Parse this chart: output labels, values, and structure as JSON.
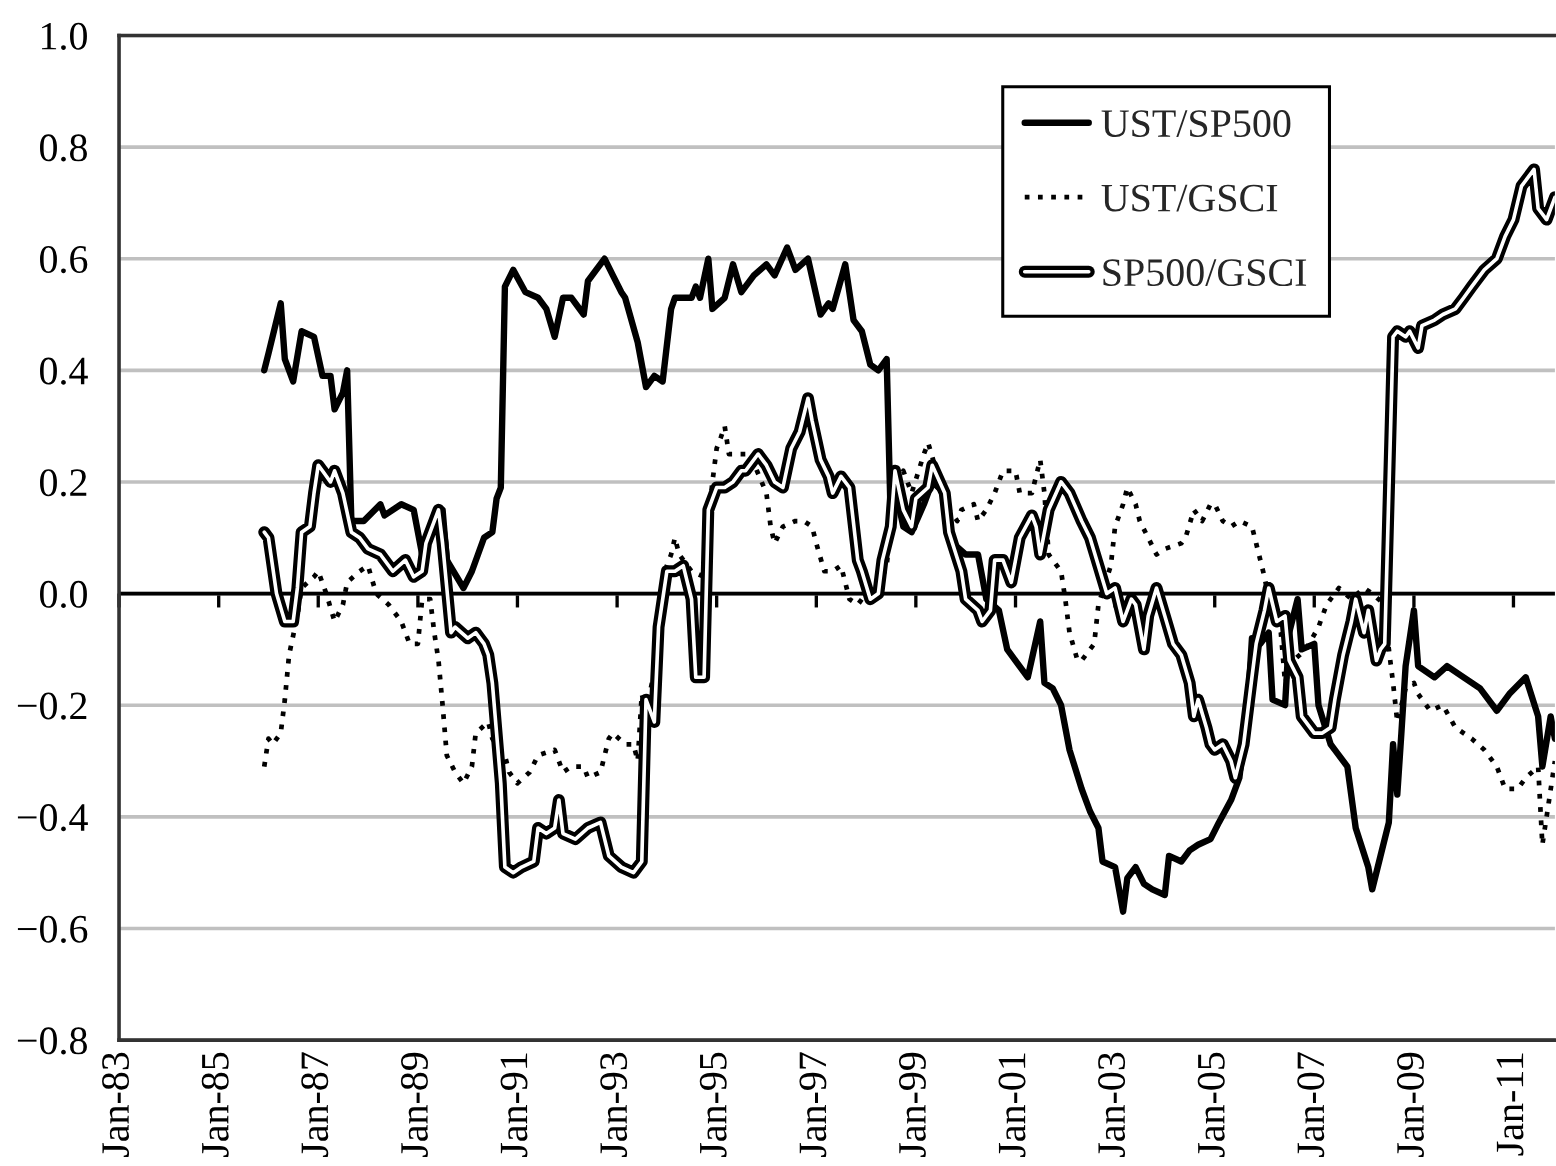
{
  "chart_data": {
    "type": "line",
    "xlim": [
      "1983-01",
      "2011-11"
    ],
    "xticks": [
      {
        "value": "1983-01",
        "label": "Jan-83"
      },
      {
        "value": "1985-01",
        "label": "Jan-85"
      },
      {
        "value": "1987-01",
        "label": "Jan-87"
      },
      {
        "value": "1989-01",
        "label": "Jan-89"
      },
      {
        "value": "1991-01",
        "label": "Jan-91"
      },
      {
        "value": "1993-01",
        "label": "Jan-93"
      },
      {
        "value": "1995-01",
        "label": "Jan-95"
      },
      {
        "value": "1997-01",
        "label": "Jan-97"
      },
      {
        "value": "1999-01",
        "label": "Jan-99"
      },
      {
        "value": "2001-01",
        "label": "Jan-01"
      },
      {
        "value": "2003-01",
        "label": "Jan-03"
      },
      {
        "value": "2005-01",
        "label": "Jan-05"
      },
      {
        "value": "2007-01",
        "label": "Jan-07"
      },
      {
        "value": "2009-01",
        "label": "Jan-09"
      },
      {
        "value": "2011-01",
        "label": "Jan-11"
      }
    ],
    "ylim": [
      -0.8,
      1.0
    ],
    "yticks": [
      {
        "value": -0.8,
        "label": "−0.8"
      },
      {
        "value": -0.6,
        "label": "−0.6"
      },
      {
        "value": -0.4,
        "label": "−0.4"
      },
      {
        "value": -0.2,
        "label": "−0.2"
      },
      {
        "value": 0,
        "label": "0.0"
      },
      0.2,
      0.4,
      0.6,
      0.8,
      {
        "value": 1,
        "label": "1.0"
      }
    ],
    "grid": "y",
    "legend": "top right",
    "ref_lines": [
      {
        "axis": "y",
        "value": 0,
        "color": "#000000"
      }
    ],
    "series": [
      {
        "name": "UST/SP500",
        "color": "#000000",
        "line_style": "solid",
        "x": [
          "1985-12",
          "1986-01",
          "1986-04",
          "1986-05",
          "1986-07",
          "1986-09",
          "1986-12",
          "1987-02",
          "1987-04",
          "1987-05",
          "1987-07",
          "1987-08",
          "1987-09",
          "1987-12",
          "1988-04",
          "1988-05",
          "1988-09",
          "1988-12",
          "1989-02",
          "1989-05",
          "1989-07",
          "1989-08",
          "1989-12",
          "1990-02",
          "1990-05",
          "1990-07",
          "1990-08",
          "1990-09",
          "1990-10",
          "1990-12",
          "1991-03",
          "1991-06",
          "1991-08",
          "1991-10",
          "1991-12",
          "1992-02",
          "1992-05",
          "1992-06",
          "1992-10",
          "1992-12",
          "1993-02",
          "1993-03",
          "1993-06",
          "1993-08",
          "1993-10",
          "1993-12",
          "1994-02",
          "1994-03",
          "1994-07",
          "1994-08",
          "1994-09",
          "1994-11",
          "1994-12",
          "1995-03",
          "1995-05",
          "1995-07",
          "1995-10",
          "1996-01",
          "1996-03",
          "1996-06",
          "1996-08",
          "1996-11",
          "1997-02",
          "1997-04",
          "1997-05",
          "1997-08",
          "1997-10",
          "1997-12",
          "1998-02",
          "1998-04",
          "1998-06",
          "1998-07",
          "1998-08",
          "1998-10",
          "1998-12",
          "1999-03",
          "1999-05",
          "1999-08",
          "1999-10",
          "2000-01",
          "2000-04",
          "2000-06",
          "2000-09",
          "2000-11",
          "2001-04",
          "2001-07",
          "2001-08",
          "2001-10",
          "2001-12",
          "2002-02",
          "2002-05",
          "2002-07",
          "2002-09",
          "2002-10",
          "2003-01",
          "2003-03",
          "2003-04",
          "2003-06",
          "2003-08",
          "2003-10",
          "2004-01",
          "2004-02",
          "2004-05",
          "2004-07",
          "2004-09",
          "2004-12",
          "2005-02",
          "2005-05",
          "2005-07",
          "2005-09",
          "2005-10",
          "2005-12",
          "2006-02",
          "2006-03",
          "2006-06",
          "2006-07",
          "2006-09",
          "2006-10",
          "2007-01",
          "2007-02",
          "2007-05",
          "2007-06",
          "2007-09",
          "2007-11",
          "2008-02",
          "2008-03",
          "2008-05",
          "2008-07",
          "2008-08",
          "2008-09",
          "2008-10",
          "2008-11",
          "2009-01",
          "2009-02",
          "2009-06",
          "2009-09",
          "2010-01",
          "2010-05",
          "2010-09",
          "2010-12",
          "2011-04",
          "2011-07",
          "2011-08",
          "2011-10",
          "2011-11"
        ],
        "values": [
          0.4,
          0.43,
          0.52,
          0.42,
          0.38,
          0.47,
          0.46,
          0.39,
          0.39,
          0.33,
          0.36,
          0.4,
          0.13,
          0.13,
          0.16,
          0.14,
          0.16,
          0.15,
          0.07,
          0.14,
          0.15,
          0.06,
          0.01,
          0.04,
          0.1,
          0.11,
          0.17,
          0.19,
          0.55,
          0.58,
          0.54,
          0.53,
          0.51,
          0.46,
          0.53,
          0.53,
          0.5,
          0.56,
          0.6,
          0.57,
          0.54,
          0.53,
          0.45,
          0.37,
          0.39,
          0.38,
          0.51,
          0.53,
          0.53,
          0.55,
          0.53,
          0.6,
          0.51,
          0.53,
          0.59,
          0.54,
          0.57,
          0.59,
          0.57,
          0.62,
          0.58,
          0.6,
          0.5,
          0.52,
          0.51,
          0.59,
          0.49,
          0.47,
          0.41,
          0.4,
          0.42,
          0.13,
          0.19,
          0.12,
          0.11,
          0.16,
          0.2,
          0.18,
          0.09,
          0.07,
          0.07,
          -0.01,
          -0.03,
          -0.1,
          -0.15,
          -0.05,
          -0.16,
          -0.17,
          -0.2,
          -0.28,
          -0.35,
          -0.39,
          -0.42,
          -0.48,
          -0.49,
          -0.57,
          -0.51,
          -0.49,
          -0.52,
          -0.53,
          -0.54,
          -0.47,
          -0.48,
          -0.46,
          -0.45,
          -0.44,
          -0.41,
          -0.37,
          -0.33,
          -0.2,
          -0.08,
          -0.09,
          -0.07,
          -0.19,
          -0.2,
          -0.07,
          -0.01,
          -0.1,
          -0.09,
          -0.2,
          -0.27,
          -0.28,
          -0.31,
          -0.42,
          -0.49,
          -0.53,
          -0.47,
          -0.41,
          -0.27,
          -0.36,
          -0.25,
          -0.13,
          -0.03,
          -0.13,
          -0.15,
          -0.13,
          -0.15,
          -0.17,
          -0.21,
          -0.18,
          -0.15,
          -0.22,
          -0.31,
          -0.22,
          -0.26
        ]
      },
      {
        "name": "UST/GSCI",
        "color": "#000000",
        "line_style": "dotted",
        "x": [
          "1985-12",
          "1986-01",
          "1986-02",
          "1986-04",
          "1986-05",
          "1986-06",
          "1986-08",
          "1986-09",
          "1986-12",
          "1987-01",
          "1987-03",
          "1987-05",
          "1987-07",
          "1987-08",
          "1987-11",
          "1988-01",
          "1988-03",
          "1988-06",
          "1988-09",
          "1988-11",
          "1989-01",
          "1989-02",
          "1989-04",
          "1989-05",
          "1989-06",
          "1989-07",
          "1989-08",
          "1989-10",
          "1989-12",
          "1990-02",
          "1990-03",
          "1990-06",
          "1990-07",
          "1990-10",
          "1990-11",
          "1991-01",
          "1991-04",
          "1991-06",
          "1991-10",
          "1991-12",
          "1992-02",
          "1992-05",
          "1992-06",
          "1992-09",
          "1992-11",
          "1992-12",
          "1993-03",
          "1993-05",
          "1993-06",
          "1993-07",
          "1993-08",
          "1993-10",
          "1993-11",
          "1993-12",
          "1994-01",
          "1994-02",
          "1994-03",
          "1994-04",
          "1994-07",
          "1994-10",
          "1994-11",
          "1994-12",
          "1995-01",
          "1995-02",
          "1995-03",
          "1995-04",
          "1995-07",
          "1995-09",
          "1996-01",
          "1996-02",
          "1996-03",
          "1996-05",
          "1996-08",
          "1996-10",
          "1996-12",
          "1997-01",
          "1997-03",
          "1997-05",
          "1997-07",
          "1997-09",
          "1997-11",
          "1998-01",
          "1998-04",
          "1998-06",
          "1998-07",
          "1998-08",
          "1998-10",
          "1998-12",
          "1999-03",
          "1999-04",
          "1999-06",
          "1999-08",
          "1999-09",
          "1999-11",
          "1999-12",
          "2000-03",
          "2000-04",
          "2000-06",
          "2000-08",
          "2000-10",
          "2001-01",
          "2001-02",
          "2001-05",
          "2001-07",
          "2001-08",
          "2001-09",
          "2001-12",
          "2002-01",
          "2002-02",
          "2002-04",
          "2002-05",
          "2002-08",
          "2002-09",
          "2002-12",
          "2003-01",
          "2003-03",
          "2003-04",
          "2003-06",
          "2003-07",
          "2003-09",
          "2003-11",
          "2004-01",
          "2004-05",
          "2004-06",
          "2004-08",
          "2004-10",
          "2004-12",
          "2005-01",
          "2005-03",
          "2005-05",
          "2005-07",
          "2005-10",
          "2005-11",
          "2006-01",
          "2006-02",
          "2006-05",
          "2006-06",
          "2006-08",
          "2006-11",
          "2007-02",
          "2007-04",
          "2007-07",
          "2007-10",
          "2008-01",
          "2008-03",
          "2008-06",
          "2008-07",
          "2008-08",
          "2008-09",
          "2008-11",
          "2009-01",
          "2009-02",
          "2009-05",
          "2009-08",
          "2009-11",
          "2010-03",
          "2010-06",
          "2010-09",
          "2010-11",
          "2011-02",
          "2011-04",
          "2011-07",
          "2011-08",
          "2011-09",
          "2011-11"
        ],
        "values": [
          -0.31,
          -0.26,
          -0.27,
          -0.25,
          -0.19,
          -0.11,
          -0.04,
          0.01,
          0.03,
          0.04,
          0.0,
          -0.05,
          -0.02,
          0.02,
          0.04,
          0.05,
          0.0,
          -0.02,
          -0.05,
          -0.09,
          -0.09,
          -0.01,
          -0.01,
          -0.07,
          -0.12,
          -0.2,
          -0.29,
          -0.32,
          -0.34,
          -0.31,
          -0.25,
          -0.23,
          -0.26,
          -0.29,
          -0.32,
          -0.34,
          -0.32,
          -0.29,
          -0.28,
          -0.32,
          -0.31,
          -0.31,
          -0.33,
          -0.32,
          -0.26,
          -0.25,
          -0.27,
          -0.27,
          -0.3,
          -0.18,
          -0.21,
          -0.14,
          -0.06,
          -0.01,
          0.05,
          0.07,
          0.1,
          0.07,
          0.04,
          0.03,
          0.13,
          0.2,
          0.26,
          0.28,
          0.3,
          0.25,
          0.25,
          0.25,
          0.18,
          0.12,
          0.09,
          0.12,
          0.13,
          0.13,
          0.12,
          0.09,
          0.04,
          0.04,
          0.05,
          -0.01,
          -0.02,
          0.0,
          0.01,
          0.05,
          0.12,
          0.18,
          0.22,
          0.18,
          0.25,
          0.27,
          0.22,
          0.17,
          0.15,
          0.13,
          0.15,
          0.16,
          0.13,
          0.15,
          0.18,
          0.22,
          0.22,
          0.18,
          0.18,
          0.24,
          0.18,
          0.07,
          0.04,
          -0.01,
          -0.07,
          -0.12,
          -0.12,
          -0.09,
          -0.02,
          0.05,
          0.12,
          0.16,
          0.19,
          0.16,
          0.13,
          0.1,
          0.07,
          0.08,
          0.09,
          0.1,
          0.15,
          0.13,
          0.16,
          0.16,
          0.13,
          0.12,
          0.13,
          0.12,
          0.09,
          0.03,
          -0.01,
          -0.07,
          -0.16,
          -0.12,
          -0.1,
          -0.06,
          -0.02,
          0.01,
          -0.01,
          0.01,
          0.0,
          -0.02,
          -0.1,
          -0.16,
          -0.23,
          -0.17,
          -0.16,
          -0.18,
          -0.21,
          -0.2,
          -0.24,
          -0.26,
          -0.28,
          -0.31,
          -0.35,
          -0.35,
          -0.33,
          -0.31,
          -0.45,
          -0.4,
          -0.3
        ]
      },
      {
        "name": "SP500/GSCI",
        "color": "#000000",
        "line_style": "solid",
        "x": [
          "1985-12",
          "1986-01",
          "1986-03",
          "1986-05",
          "1986-07",
          "1986-08",
          "1986-09",
          "1986-11",
          "1986-12",
          "1987-01",
          "1987-02",
          "1987-04",
          "1987-05",
          "1987-07",
          "1987-09",
          "1987-11",
          "1988-01",
          "1988-04",
          "1988-07",
          "1988-10",
          "1988-12",
          "1989-02",
          "1989-03",
          "1989-05",
          "1989-06",
          "1989-07",
          "1989-09",
          "1989-10",
          "1990-01",
          "1990-03",
          "1990-05",
          "1990-06",
          "1990-07",
          "1990-09",
          "1990-10",
          "1990-12",
          "1991-02",
          "1991-05",
          "1991-06",
          "1991-08",
          "1991-10",
          "1991-11",
          "1991-12",
          "1992-03",
          "1992-06",
          "1992-09",
          "1992-11",
          "1993-02",
          "1993-05",
          "1993-07",
          "1993-08",
          "1993-10",
          "1993-11",
          "1994-01",
          "1994-03",
          "1994-05",
          "1994-07",
          "1994-08",
          "1994-10",
          "1994-11",
          "1995-01",
          "1995-03",
          "1995-05",
          "1995-07",
          "1995-08",
          "1995-11",
          "1996-01",
          "1996-03",
          "1996-05",
          "1996-07",
          "1996-09",
          "1996-11",
          "1996-12",
          "1997-02",
          "1997-04",
          "1997-05",
          "1997-07",
          "1997-09",
          "1997-11",
          "1997-12",
          "1998-02",
          "1998-04",
          "1998-05",
          "1998-07",
          "1998-08",
          "1998-10",
          "1998-12",
          "1999-01",
          "1999-04",
          "1999-05",
          "1999-08",
          "1999-09",
          "1999-12",
          "2000-01",
          "2000-04",
          "2000-05",
          "2000-07",
          "2000-08",
          "2000-10",
          "2000-12",
          "2001-02",
          "2001-05",
          "2001-06",
          "2001-07",
          "2001-09",
          "2001-12",
          "2002-02",
          "2002-05",
          "2002-07",
          "2002-09",
          "2002-11",
          "2003-01",
          "2003-03",
          "2003-05",
          "2003-06",
          "2003-08",
          "2003-09",
          "2003-11",
          "2004-01",
          "2004-03",
          "2004-05",
          "2004-07",
          "2004-08",
          "2004-09",
          "2004-11",
          "2004-12",
          "2005-01",
          "2005-03",
          "2005-05",
          "2005-06",
          "2005-08",
          "2005-10",
          "2005-11",
          "2006-01",
          "2006-02",
          "2006-04",
          "2006-06",
          "2006-07",
          "2006-09",
          "2006-10",
          "2007-01",
          "2007-03",
          "2007-05",
          "2007-06",
          "2007-08",
          "2007-10",
          "2007-11",
          "2008-01",
          "2008-02",
          "2008-04",
          "2008-05",
          "2008-06",
          "2008-08",
          "2008-09",
          "2008-11",
          "2008-12",
          "2009-02",
          "2009-03",
          "2009-06",
          "2009-08",
          "2009-11",
          "2010-01",
          "2010-03",
          "2010-06",
          "2010-09",
          "2010-11",
          "2011-01",
          "2011-03",
          "2011-06",
          "2011-07",
          "2011-09",
          "2011-11"
        ],
        "values": [
          0.11,
          0.1,
          0.0,
          -0.05,
          -0.05,
          0.01,
          0.11,
          0.12,
          0.18,
          0.23,
          0.22,
          0.2,
          0.22,
          0.18,
          0.11,
          0.1,
          0.08,
          0.07,
          0.04,
          0.06,
          0.03,
          0.04,
          0.09,
          0.13,
          0.15,
          0.09,
          -0.07,
          -0.06,
          -0.08,
          -0.07,
          -0.09,
          -0.11,
          -0.16,
          -0.34,
          -0.49,
          -0.5,
          -0.49,
          -0.48,
          -0.42,
          -0.43,
          -0.42,
          -0.37,
          -0.43,
          -0.44,
          -0.42,
          -0.41,
          -0.47,
          -0.49,
          -0.5,
          -0.48,
          -0.19,
          -0.23,
          -0.06,
          0.04,
          0.04,
          0.05,
          -0.01,
          -0.15,
          -0.15,
          0.15,
          0.19,
          0.19,
          0.2,
          0.22,
          0.22,
          0.25,
          0.23,
          0.2,
          0.19,
          0.26,
          0.29,
          0.35,
          0.31,
          0.24,
          0.21,
          0.18,
          0.21,
          0.19,
          0.06,
          0.04,
          -0.01,
          0.0,
          0.06,
          0.12,
          0.22,
          0.15,
          0.12,
          0.17,
          0.19,
          0.23,
          0.18,
          0.11,
          0.04,
          -0.01,
          -0.03,
          -0.05,
          -0.03,
          0.06,
          0.06,
          0.02,
          0.1,
          0.14,
          0.12,
          0.07,
          0.15,
          0.2,
          0.18,
          0.13,
          0.1,
          0.05,
          0.0,
          0.01,
          -0.05,
          -0.01,
          -0.02,
          -0.1,
          -0.04,
          0.01,
          -0.04,
          -0.09,
          -0.11,
          -0.16,
          -0.22,
          -0.19,
          -0.24,
          -0.27,
          -0.28,
          -0.27,
          -0.3,
          -0.33,
          -0.27,
          -0.15,
          -0.09,
          -0.03,
          0.01,
          -0.05,
          -0.04,
          -0.12,
          -0.15,
          -0.22,
          -0.25,
          -0.25,
          -0.24,
          -0.19,
          -0.11,
          -0.05,
          -0.01,
          -0.07,
          -0.03,
          -0.12,
          -0.1,
          -0.09,
          0.46,
          0.47,
          0.46,
          0.47,
          0.44,
          0.48,
          0.49,
          0.5,
          0.51,
          0.53,
          0.55,
          0.58,
          0.6,
          0.64,
          0.67,
          0.73,
          0.76,
          0.69,
          0.67,
          0.71
        ]
      }
    ]
  }
}
